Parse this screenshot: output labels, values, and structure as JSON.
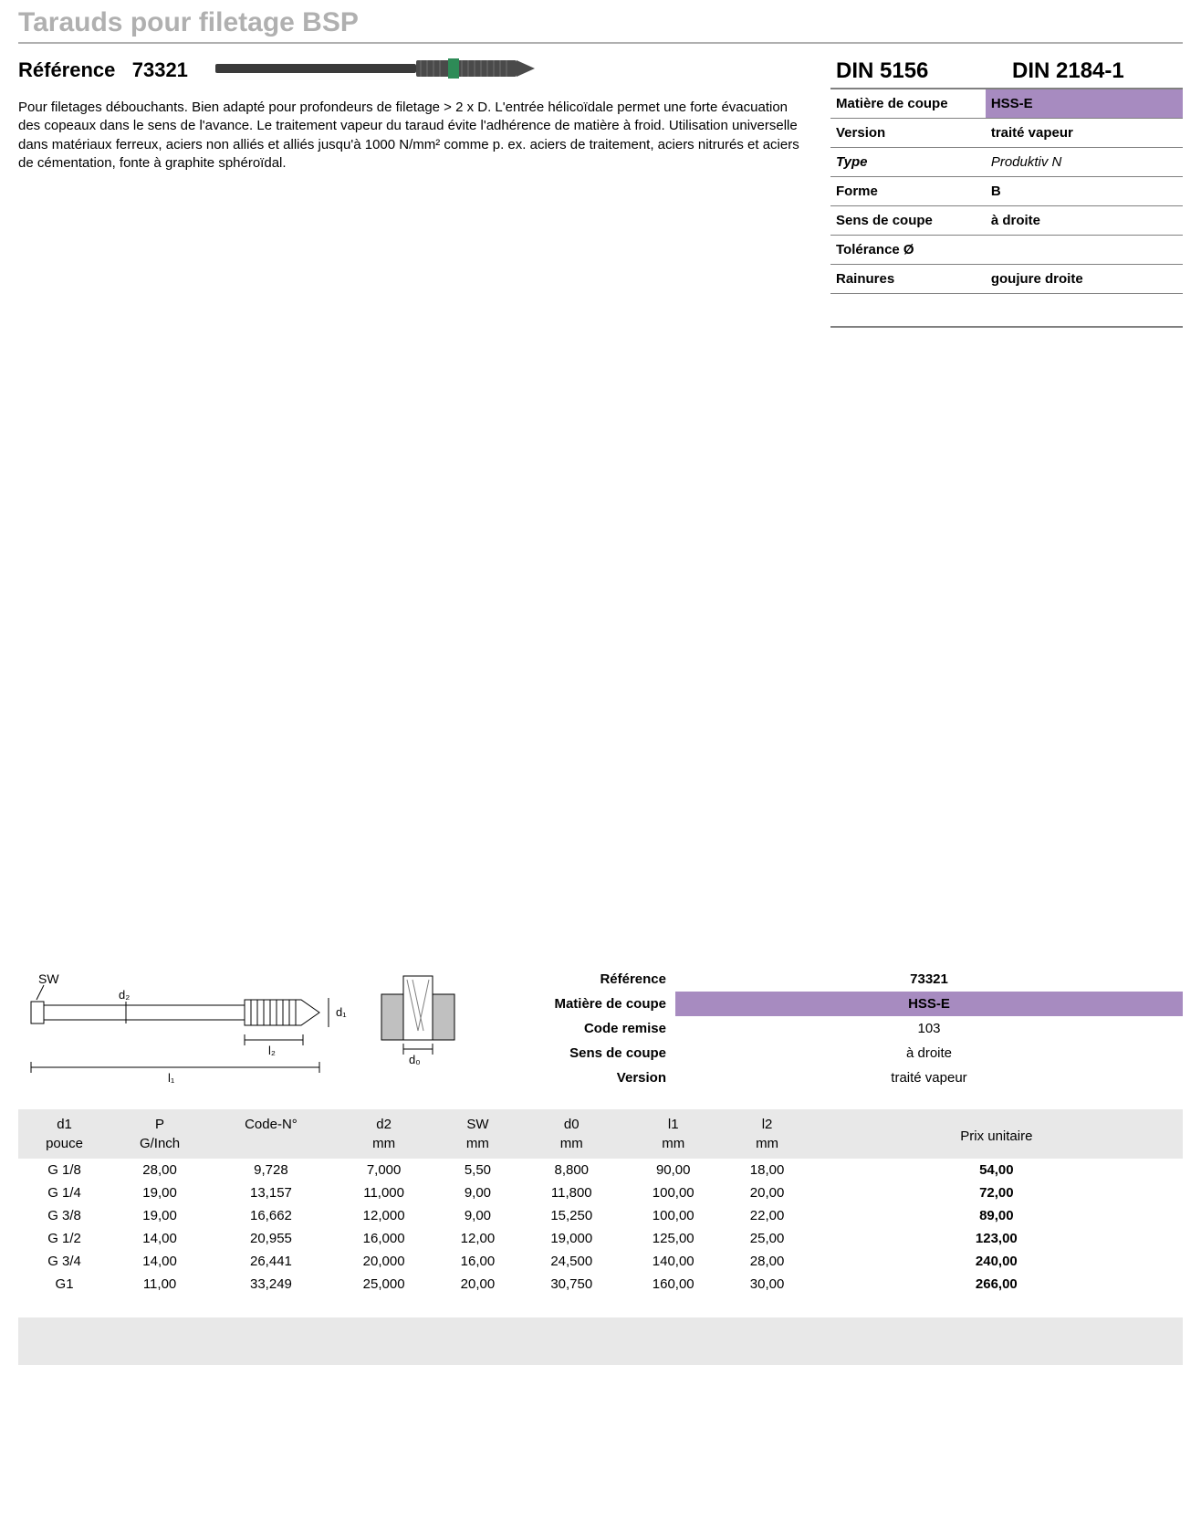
{
  "title": "Tarauds pour filetage BSP",
  "reference_label": "Référence",
  "reference_number": "73321",
  "description": "Pour filetages débouchants. Bien adapté pour profondeurs de filetage > 2 x D. L'entrée hélicoïdale permet une forte évacuation des copeaux dans le sens de l'avance. Le traitement vapeur du taraud évite l'adhérence de matière à froid. Utilisation universelle dans matériaux ferreux, aciers non alliés et alliés jusqu'à 1000 N/mm² comme p. ex. aciers de traitement, aciers nitrurés et aciers de cémentation, fonte à graphite sphéroïdal.",
  "din": {
    "left": "DIN 5156",
    "right": "DIN 2184-1"
  },
  "specs": [
    {
      "label": "Matière de coupe",
      "value": "HSS-E",
      "highlight": true
    },
    {
      "label": "Version",
      "value": "traité vapeur"
    },
    {
      "label": "Type",
      "value": "Produktiv N",
      "italic": true
    },
    {
      "label": "Forme",
      "value": "B"
    },
    {
      "label": "Sens de coupe",
      "value": "à droite"
    },
    {
      "label": "Tolérance Ø",
      "value": ""
    },
    {
      "label": "Rainures",
      "value": "goujure droite"
    }
  ],
  "info_block": [
    {
      "label": "Référence",
      "value": "73321",
      "bold": true
    },
    {
      "label": "Matière de coupe",
      "value": "HSS-E",
      "highlight": true
    },
    {
      "label": "Code remise",
      "value": "103"
    },
    {
      "label": "Sens de coupe",
      "value": "à droite"
    },
    {
      "label": "Version",
      "value": "traité vapeur"
    }
  ],
  "data_table": {
    "headers1": [
      "d1",
      "P",
      "Code-N°",
      "d2",
      "SW",
      "d0",
      "l1",
      "l2"
    ],
    "headers2": [
      "pouce",
      "G/Inch",
      "",
      "mm",
      "mm",
      "mm",
      "mm",
      "mm"
    ],
    "price_header": "Prix unitaire",
    "rows": [
      [
        "G 1/8",
        "28,00",
        "9,728",
        "7,000",
        "5,50",
        "8,800",
        "90,00",
        "18,00",
        "54,00"
      ],
      [
        "G 1/4",
        "19,00",
        "13,157",
        "11,000",
        "9,00",
        "11,800",
        "100,00",
        "20,00",
        "72,00"
      ],
      [
        "G 3/8",
        "19,00",
        "16,662",
        "12,000",
        "9,00",
        "15,250",
        "100,00",
        "22,00",
        "89,00"
      ],
      [
        "G 1/2",
        "14,00",
        "20,955",
        "16,000",
        "12,00",
        "19,000",
        "125,00",
        "25,00",
        "123,00"
      ],
      [
        "G 3/4",
        "14,00",
        "26,441",
        "20,000",
        "16,00",
        "24,500",
        "140,00",
        "28,00",
        "240,00"
      ],
      [
        "G1",
        "11,00",
        "33,249",
        "25,000",
        "20,00",
        "30,750",
        "160,00",
        "30,00",
        "266,00"
      ]
    ]
  },
  "colors": {
    "purple": "#a78bc0",
    "title_gray": "#b0b0b0",
    "grid_gray": "#808080",
    "table_bg": "#e8e8e8"
  },
  "diagram_labels": {
    "sw": "SW",
    "d2": "d₂",
    "d1": "d₁",
    "l2": "l₂",
    "l1": "l₁",
    "d0": "d₀"
  }
}
